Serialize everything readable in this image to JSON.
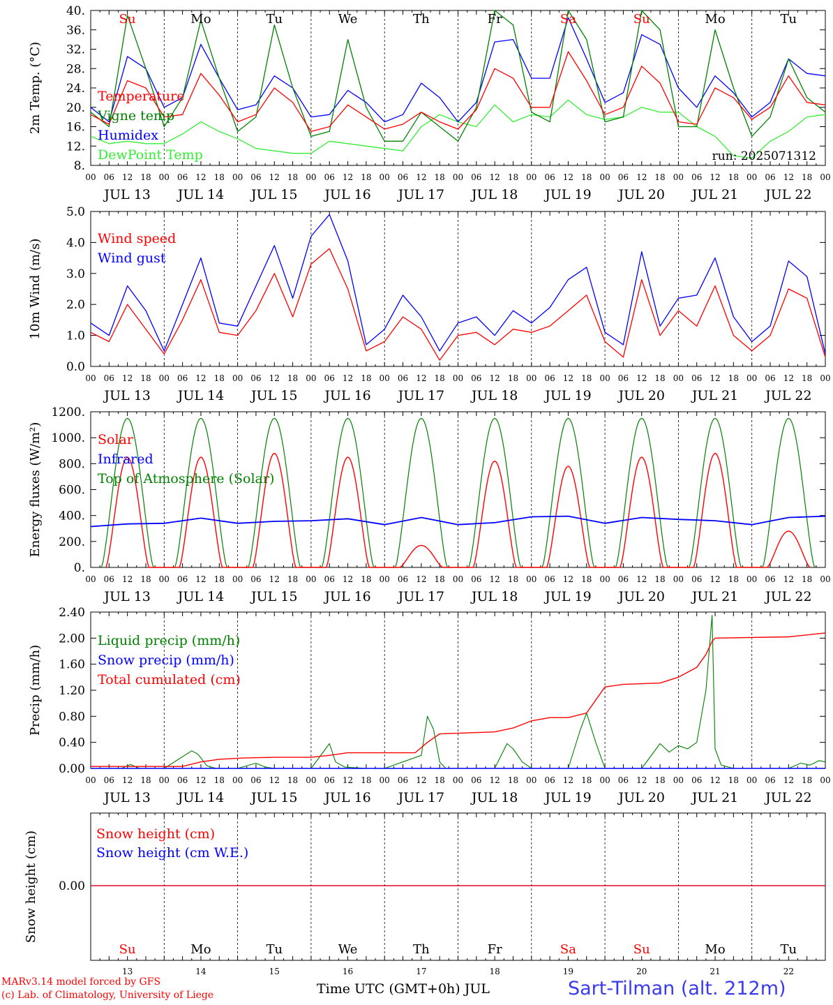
{
  "colors": {
    "red": "#ff0000",
    "darkgreen": "#008000",
    "blue": "#0000ff",
    "lightgreen": "#33ee33",
    "grid": "#000000"
  },
  "x_axis": {
    "days": [
      "13",
      "14",
      "15",
      "16",
      "17",
      "18",
      "19",
      "20",
      "21",
      "22"
    ],
    "month": "JUL",
    "day_labels": [
      "JUL 13",
      "JUL 14",
      "JUL 15",
      "JUL 16",
      "JUL 17",
      "JUL 18",
      "JUL 19",
      "JUL 20",
      "JUL 21",
      "JUL 22"
    ],
    "hour_ticks": [
      "00",
      "06",
      "12",
      "18"
    ],
    "weekdays": [
      "Su",
      "Mo",
      "Tu",
      "We",
      "Th",
      "Fr",
      "Sa",
      "Su",
      "Mo",
      "Tu"
    ],
    "weekday_colors": [
      "#ff0000",
      "#000000",
      "#000000",
      "#000000",
      "#000000",
      "#000000",
      "#ff0000",
      "#ff0000",
      "#000000",
      "#000000"
    ]
  },
  "footer": {
    "credit_line1": "MARv3.14 model forced by GFS",
    "credit_line2": "(c) Lab. of Climatology, University of Liege",
    "time_label": "Time UTC (GMT+0h) JUL",
    "station": "Sart-Tilman (alt. 212m)"
  },
  "chart_data": [
    {
      "type": "line",
      "ylabel": "2m Temp. (°C)",
      "ylim": [
        8,
        40
      ],
      "yticks": [
        "8.",
        "12.",
        "16.",
        "20.",
        "24.",
        "28.",
        "32.",
        "36.",
        "40."
      ],
      "annotation": "run: 2025071312",
      "x_unit": "hours from JUL 13 00 UTC",
      "series": [
        {
          "name": "Temperature",
          "color": "#ff0000",
          "x": [
            0,
            6,
            12,
            18,
            24,
            30,
            36,
            42,
            48,
            54,
            60,
            66,
            72,
            78,
            84,
            90,
            96,
            102,
            108,
            114,
            120,
            126,
            132,
            138,
            144,
            150,
            156,
            162,
            168,
            174,
            180,
            186,
            192,
            198,
            204,
            210,
            216,
            222,
            228,
            234,
            240
          ],
          "y": [
            18.5,
            16.5,
            25.5,
            24,
            18,
            18.5,
            27,
            22.5,
            17,
            18.5,
            24,
            21,
            15,
            16,
            20.5,
            18,
            15.5,
            16.5,
            19,
            17,
            15.5,
            19.5,
            28,
            26,
            20,
            20,
            31.5,
            25.5,
            18.5,
            20,
            28.5,
            25,
            17,
            16.5,
            24,
            22,
            17.5,
            20,
            26.5,
            21,
            20.5
          ]
        },
        {
          "name": "Vigne temp",
          "color": "#008000",
          "x": [
            0,
            6,
            12,
            18,
            24,
            30,
            36,
            42,
            48,
            54,
            60,
            66,
            72,
            78,
            84,
            90,
            96,
            102,
            108,
            114,
            120,
            126,
            132,
            138,
            144,
            150,
            156,
            162,
            168,
            174,
            180,
            186,
            192,
            198,
            204,
            210,
            216,
            222,
            228,
            234,
            240
          ],
          "y": [
            19,
            16,
            39,
            28,
            16,
            22,
            38,
            26,
            15,
            18,
            37,
            24,
            14,
            15,
            34,
            20,
            13,
            13,
            19,
            16,
            13,
            20,
            40,
            37,
            19,
            17,
            40,
            34,
            17,
            18,
            40,
            36,
            16,
            16,
            36,
            24,
            14,
            18,
            30,
            22,
            19
          ]
        },
        {
          "name": "Humidex",
          "color": "#0000ff",
          "x": [
            0,
            6,
            12,
            18,
            24,
            30,
            36,
            42,
            48,
            54,
            60,
            66,
            72,
            78,
            84,
            90,
            96,
            102,
            108,
            114,
            120,
            126,
            132,
            138,
            144,
            150,
            156,
            162,
            168,
            174,
            180,
            186,
            192,
            198,
            204,
            210,
            216,
            222,
            228,
            234,
            240
          ],
          "y": [
            20,
            17,
            30.5,
            28,
            20,
            22,
            33,
            26,
            19.5,
            20.5,
            26.5,
            24,
            18,
            18.5,
            23.5,
            21,
            17,
            18.5,
            25,
            22,
            17,
            21,
            33.5,
            34,
            26,
            26,
            38.5,
            30,
            21,
            23,
            35,
            33,
            24,
            20,
            26.5,
            23,
            18,
            21,
            30,
            27,
            26.5
          ]
        },
        {
          "name": "DewPoint Temp",
          "color": "#33ee33",
          "x": [
            0,
            6,
            12,
            18,
            24,
            30,
            36,
            42,
            48,
            54,
            60,
            66,
            72,
            78,
            84,
            90,
            96,
            102,
            108,
            114,
            120,
            126,
            132,
            138,
            144,
            150,
            156,
            162,
            168,
            174,
            180,
            186,
            192,
            198,
            204,
            210,
            216,
            222,
            228,
            234,
            240
          ],
          "y": [
            14,
            12.5,
            13,
            12.5,
            12.5,
            14.5,
            17,
            15,
            13.5,
            11.5,
            11,
            10.5,
            10.5,
            13,
            12.5,
            12,
            11.5,
            11,
            16,
            18.5,
            17,
            16,
            20.5,
            17,
            18.5,
            18,
            21.5,
            18.5,
            17.5,
            18,
            20,
            19,
            19,
            16,
            14,
            10,
            9.5,
            13,
            15,
            18,
            18.5
          ]
        }
      ]
    },
    {
      "type": "line",
      "ylabel": "10m Wind (m/s)",
      "ylim": [
        0,
        5
      ],
      "yticks": [
        "0.0",
        "1.0",
        "2.0",
        "3.0",
        "4.0",
        "5.0"
      ],
      "x_unit": "hours from JUL 13 00 UTC",
      "series": [
        {
          "name": "Wind speed",
          "color": "#ff0000",
          "x": [
            0,
            6,
            12,
            18,
            24,
            30,
            36,
            42,
            48,
            54,
            60,
            66,
            72,
            78,
            84,
            90,
            96,
            102,
            108,
            114,
            120,
            126,
            132,
            138,
            144,
            150,
            156,
            162,
            168,
            174,
            180,
            186,
            192,
            198,
            204,
            210,
            216,
            222,
            228,
            234,
            240
          ],
          "y": [
            1.1,
            0.8,
            2.0,
            1.2,
            0.4,
            1.5,
            2.8,
            1.1,
            1.0,
            1.8,
            3.0,
            1.6,
            3.3,
            3.8,
            2.5,
            0.5,
            0.8,
            1.6,
            1.2,
            0.2,
            1.0,
            1.1,
            0.7,
            1.2,
            1.1,
            1.3,
            1.8,
            2.3,
            0.8,
            0.3,
            2.8,
            1.0,
            1.8,
            1.3,
            2.6,
            1.0,
            0.5,
            1.0,
            2.5,
            2.2,
            0.3
          ]
        },
        {
          "name": "Wind gust",
          "color": "#0000ff",
          "x": [
            0,
            6,
            12,
            18,
            24,
            30,
            36,
            42,
            48,
            54,
            60,
            66,
            72,
            78,
            84,
            90,
            96,
            102,
            108,
            114,
            120,
            126,
            132,
            138,
            144,
            150,
            156,
            162,
            168,
            174,
            180,
            186,
            192,
            198,
            204,
            210,
            216,
            222,
            228,
            234,
            240
          ],
          "y": [
            1.4,
            1.0,
            2.6,
            1.8,
            0.5,
            2.0,
            3.5,
            1.4,
            1.3,
            2.6,
            3.9,
            2.2,
            4.2,
            4.9,
            3.4,
            0.7,
            1.2,
            2.3,
            1.6,
            0.5,
            1.4,
            1.6,
            1.0,
            1.8,
            1.4,
            1.9,
            2.8,
            3.2,
            1.1,
            0.7,
            3.7,
            1.3,
            2.2,
            2.3,
            3.5,
            1.6,
            0.8,
            1.3,
            3.4,
            2.9,
            0.4
          ]
        }
      ]
    },
    {
      "type": "line",
      "ylabel": "Energy fluxes (W/m²)",
      "ylim": [
        0,
        1200
      ],
      "yticks": [
        "0.",
        "200.",
        "400.",
        "600.",
        "800.",
        "1000.",
        "1200."
      ],
      "x_unit": "hours from JUL 13 00 UTC",
      "series": [
        {
          "name": "Solar",
          "color": "#ff0000",
          "daily_peak": [
            850,
            850,
            880,
            850,
            170,
            820,
            780,
            850,
            880,
            280
          ]
        },
        {
          "name": "Infrared",
          "color": "#0000ff",
          "x": [
            0,
            12,
            24,
            36,
            48,
            60,
            72,
            84,
            96,
            108,
            120,
            132,
            144,
            156,
            168,
            180,
            192,
            204,
            216,
            228,
            240
          ],
          "y": [
            315,
            335,
            340,
            380,
            340,
            355,
            360,
            375,
            330,
            385,
            330,
            345,
            390,
            395,
            340,
            385,
            370,
            360,
            330,
            385,
            395
          ]
        },
        {
          "name": "Top of Atmosphere (Solar)",
          "color": "#008000",
          "daily_peak": [
            1150,
            1150,
            1150,
            1150,
            1150,
            1150,
            1150,
            1150,
            1150,
            1150
          ]
        }
      ]
    },
    {
      "type": "line",
      "ylabel": "Precip (mm/h)",
      "ylim": [
        0,
        2.4
      ],
      "yticks": [
        "0.00",
        "0.40",
        "0.80",
        "1.20",
        "1.60",
        "2.00",
        "2.40"
      ],
      "x_unit": "hours from JUL 13 00 UTC",
      "series": [
        {
          "name": "Liquid precip (mm/h)",
          "color": "#008000",
          "x": [
            0,
            10,
            13,
            16,
            24,
            33,
            35,
            38,
            41,
            48,
            54,
            57,
            60,
            72,
            78,
            80,
            83,
            90,
            96,
            108,
            110,
            112,
            114,
            116,
            120,
            132,
            136,
            138,
            141,
            144,
            156,
            160,
            162,
            165,
            168,
            180,
            186,
            189,
            192,
            195,
            198,
            201,
            203,
            204,
            206,
            210,
            216,
            228,
            232,
            235,
            238,
            240
          ],
          "y": [
            0,
            0,
            0.06,
            0,
            0,
            0.27,
            0.22,
            0.04,
            0,
            0,
            0.08,
            0.02,
            0,
            0,
            0.38,
            0.1,
            0.02,
            0,
            0,
            0.2,
            0.8,
            0.6,
            0.1,
            0,
            0,
            0,
            0.38,
            0.3,
            0.1,
            0,
            0,
            0.6,
            0.85,
            0.4,
            0,
            0,
            0.38,
            0.25,
            0.35,
            0.3,
            0.4,
            1.2,
            2.35,
            0.3,
            0.05,
            0,
            0,
            0,
            0.08,
            0.05,
            0.12,
            0.1
          ]
        },
        {
          "name": "Snow precip (mm/h)",
          "color": "#0000ff",
          "x": [
            0,
            240
          ],
          "y": [
            0,
            0
          ]
        },
        {
          "name": "Total cumulated (cm)",
          "color": "#ff0000",
          "x": [
            0,
            30,
            36,
            42,
            50,
            60,
            72,
            78,
            84,
            96,
            106,
            110,
            114,
            132,
            138,
            144,
            150,
            156,
            162,
            168,
            174,
            186,
            192,
            198,
            201,
            203,
            204,
            228,
            240
          ],
          "y": [
            0.03,
            0.03,
            0.1,
            0.14,
            0.16,
            0.17,
            0.17,
            0.2,
            0.24,
            0.24,
            0.24,
            0.4,
            0.53,
            0.56,
            0.62,
            0.73,
            0.78,
            0.78,
            0.85,
            1.25,
            1.29,
            1.31,
            1.4,
            1.55,
            1.75,
            1.95,
            2.0,
            2.02,
            2.08
          ]
        }
      ]
    },
    {
      "type": "line",
      "ylabel": "Snow height (cm)",
      "yticks": [
        "0.00"
      ],
      "x_unit": "hours from JUL 13 00 UTC",
      "series": [
        {
          "name": "Snow height (cm)",
          "color": "#ff0000",
          "x": [
            0,
            240
          ],
          "y": [
            0,
            0
          ]
        },
        {
          "name": "Snow height (cm W.E.)",
          "color": "#0000ff",
          "x": [
            0,
            240
          ],
          "y": [
            0,
            0
          ]
        }
      ]
    }
  ]
}
